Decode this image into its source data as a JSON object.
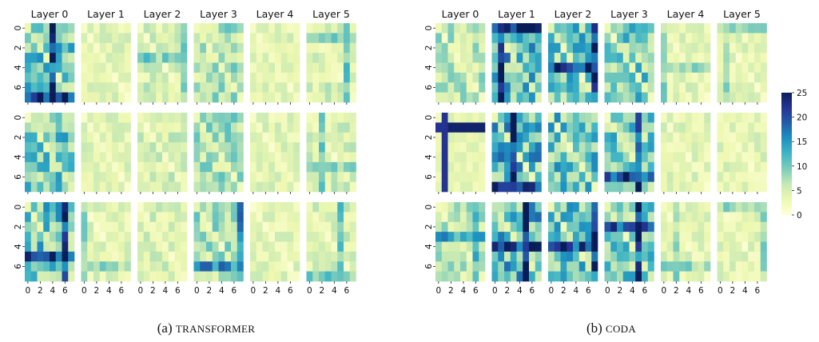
{
  "chart_data": [
    {
      "type": "heatmap",
      "caption_prefix": "(a)",
      "caption_name": "TRANSFORMER",
      "layers": [
        "Layer 0",
        "Layer 1",
        "Layer 2",
        "Layer 3",
        "Layer 4",
        "Layer 5"
      ],
      "rows": 3,
      "grid_size": 8,
      "x_ticks": [
        "0",
        "2",
        "4",
        "6"
      ],
      "y_ticks": [
        "0",
        "2",
        "4",
        "6"
      ],
      "layer_intensity": [
        13,
        5,
        6,
        9,
        5,
        6
      ]
    },
    {
      "type": "heatmap",
      "caption_prefix": "(b)",
      "caption_name": "CODA",
      "layers": [
        "Layer 0",
        "Layer 1",
        "Layer 2",
        "Layer 3",
        "Layer 4",
        "Layer 5"
      ],
      "rows": 3,
      "grid_size": 8,
      "x_ticks": [
        "0",
        "2",
        "4",
        "6"
      ],
      "y_ticks": [
        "0",
        "2",
        "4",
        "6"
      ],
      "layer_intensity": [
        8,
        15,
        13,
        12,
        5,
        5
      ]
    }
  ],
  "colorbar": {
    "min": 0,
    "max": 25,
    "ticks": [
      "0",
      "5",
      "10",
      "15",
      "20",
      "25"
    ],
    "colormap": [
      "#ffffd9",
      "#edf8b1",
      "#c7e9b4",
      "#7fcdbb",
      "#41b6c4",
      "#1d91c0",
      "#225ea8",
      "#253494",
      "#081d58"
    ]
  }
}
